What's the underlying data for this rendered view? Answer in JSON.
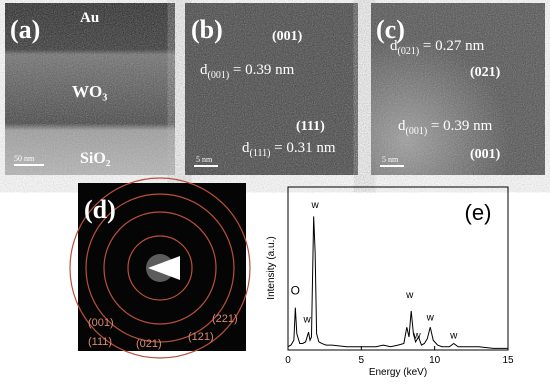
{
  "panels": {
    "a": {
      "label": "(a)",
      "layers": [
        "Au",
        "WO₃",
        "SiO₂"
      ],
      "scale": "50 nm"
    },
    "b": {
      "label": "(b)",
      "plane1": "(001)",
      "d1": {
        "d": "d",
        "sub": "(001)",
        "rest": " = 0.39 nm"
      },
      "plane2": "(111)",
      "d2": {
        "d": "d",
        "sub": "(111)",
        "rest": " = 0.31 nm"
      },
      "scale": "5 nm"
    },
    "c": {
      "label": "(c)",
      "d1": {
        "d": "d",
        "sub": "(021)",
        "rest": " = 0.27 nm"
      },
      "plane1": "(021)",
      "d2": {
        "d": "d",
        "sub": "(001)",
        "rest": " = 0.39 nm"
      },
      "plane2": "(001)",
      "scale": "5 nm"
    },
    "d": {
      "label": "(d)",
      "rings": [
        "(001)",
        "(111)",
        "(021)",
        "(121)",
        "(221)"
      ]
    }
  },
  "chart_data": {
    "type": "line",
    "panel_label": "(e)",
    "x_label": "Energy (keV)",
    "y_label": "Intensity (a.u.)",
    "x": [
      0,
      0.2,
      0.4,
      0.5,
      0.6,
      0.8,
      1.0,
      1.2,
      1.4,
      1.5,
      1.6,
      1.75,
      1.85,
      1.95,
      2.1,
      2.3,
      2.6,
      3,
      4,
      5,
      6,
      6.5,
      7,
      7.5,
      7.9,
      8.1,
      8.25,
      8.4,
      8.55,
      8.7,
      8.9,
      9.1,
      9.3,
      9.5,
      9.7,
      9.9,
      10.2,
      10.5,
      11,
      11.3,
      11.6,
      12,
      13,
      14,
      15
    ],
    "values": [
      2,
      3,
      6,
      26,
      10,
      4,
      4,
      5,
      11,
      6,
      8,
      82,
      60,
      10,
      5,
      4,
      3,
      3,
      2,
      2,
      2,
      3,
      2,
      3,
      4,
      14,
      8,
      24,
      10,
      5,
      8,
      3,
      4,
      7,
      14,
      6,
      3,
      2,
      2,
      4,
      2,
      2,
      2,
      1,
      1
    ],
    "color": "#000000",
    "xlim": [
      0,
      15
    ],
    "xticks": [
      0,
      5,
      10,
      15
    ],
    "ylim": [
      0,
      100
    ],
    "annotations": [
      {
        "text": "O",
        "x": 0.5,
        "y": 34
      },
      {
        "text": "w",
        "x": 1.3,
        "y": 17
      },
      {
        "text": "w",
        "x": 1.85,
        "y": 87
      },
      {
        "text": "w",
        "x": 8.3,
        "y": 32
      },
      {
        "text": "w",
        "x": 8.8,
        "y": 7
      },
      {
        "text": "w",
        "x": 9.7,
        "y": 18
      },
      {
        "text": "w",
        "x": 11.3,
        "y": 7
      }
    ]
  }
}
